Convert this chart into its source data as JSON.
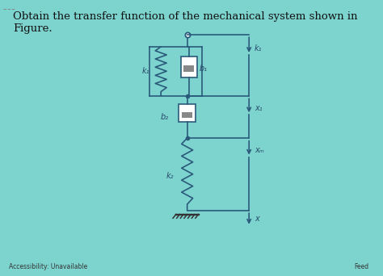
{
  "bg_color": "#7dd4cf",
  "title_text": "Obtain the transfer function of the mechanical system shown in Figure.",
  "title_fontsize": 9.5,
  "title_color": "#111111",
  "diagram_color": "#2a5a7a",
  "label_color": "#2a4a6a",
  "footer_left": "Accessibility: Unavailable",
  "footer_right": "Feed",
  "labels": {
    "k1": "k₁",
    "b1": "b₁",
    "b2": "b₂",
    "k2": "k₂",
    "k1_right": "k₁",
    "x1": "x₁",
    "xm": "xₘ",
    "x": "x"
  }
}
